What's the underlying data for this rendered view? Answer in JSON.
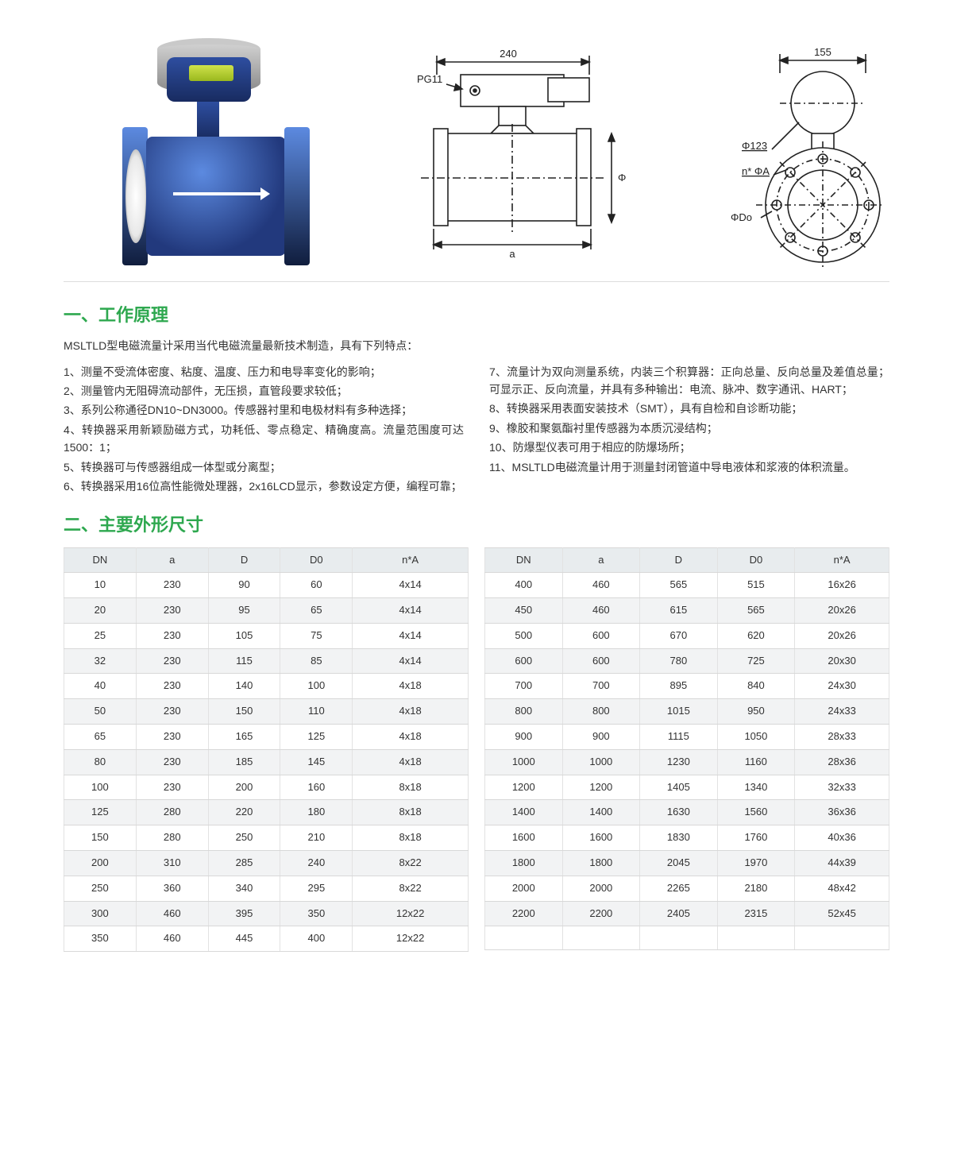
{
  "section1": {
    "title": "一、工作原理",
    "intro": "MSLTLD型电磁流量计采用当代电磁流量最新技术制造，具有下列特点：",
    "left": [
      "1、测量不受流体密度、粘度、温度、压力和电导率变化的影响；",
      "2、测量管内无阻碍流动部件，无压损，直管段要求较低；",
      "3、系列公称通径DN10~DN3000。传感器衬里和电极材料有多种选择；",
      "4、转换器采用新颖励磁方式，功耗低、零点稳定、精确度高。流量范围度可达1500：1；",
      "5、转换器可与传感器组成一体型或分离型；",
      "6、转换器采用16位高性能微处理器，2x16LCD显示，参数设定方便，编程可靠；"
    ],
    "right": [
      "7、流量计为双向测量系统，内装三个积算器：正向总量、反向总量及差值总量；可显示正、反向流量，并具有多种输出：电流、脉冲、数字通讯、HART；",
      "8、转换器采用表面安装技术（SMT），具有自检和自诊断功能；",
      "9、橡胶和聚氨酯衬里传感器为本质沉浸结构；",
      "10、防爆型仪表可用于相应的防爆场所；",
      "11、MSLTLD电磁流量计用于测量封闭管道中导电液体和浆液的体积流量。"
    ]
  },
  "section2": {
    "title": "二、主要外形尺寸"
  },
  "tableHeaders": [
    "DN",
    "a",
    "D",
    "D0",
    "n*A"
  ],
  "tableLeft": [
    [
      "10",
      "230",
      "90",
      "60",
      "4x14"
    ],
    [
      "20",
      "230",
      "95",
      "65",
      "4x14"
    ],
    [
      "25",
      "230",
      "105",
      "75",
      "4x14"
    ],
    [
      "32",
      "230",
      "115",
      "85",
      "4x14"
    ],
    [
      "40",
      "230",
      "140",
      "100",
      "4x18"
    ],
    [
      "50",
      "230",
      "150",
      "110",
      "4x18"
    ],
    [
      "65",
      "230",
      "165",
      "125",
      "4x18"
    ],
    [
      "80",
      "230",
      "185",
      "145",
      "4x18"
    ],
    [
      "100",
      "230",
      "200",
      "160",
      "8x18"
    ],
    [
      "125",
      "280",
      "220",
      "180",
      "8x18"
    ],
    [
      "150",
      "280",
      "250",
      "210",
      "8x18"
    ],
    [
      "200",
      "310",
      "285",
      "240",
      "8x22"
    ],
    [
      "250",
      "360",
      "340",
      "295",
      "8x22"
    ],
    [
      "300",
      "460",
      "395",
      "350",
      "12x22"
    ],
    [
      "350",
      "460",
      "445",
      "400",
      "12x22"
    ]
  ],
  "tableRight": [
    [
      "400",
      "460",
      "565",
      "515",
      "16x26"
    ],
    [
      "450",
      "460",
      "615",
      "565",
      "20x26"
    ],
    [
      "500",
      "600",
      "670",
      "620",
      "20x26"
    ],
    [
      "600",
      "600",
      "780",
      "725",
      "20x30"
    ],
    [
      "700",
      "700",
      "895",
      "840",
      "24x30"
    ],
    [
      "800",
      "800",
      "1015",
      "950",
      "24x33"
    ],
    [
      "900",
      "900",
      "1115",
      "1050",
      "28x33"
    ],
    [
      "1000",
      "1000",
      "1230",
      "1160",
      "28x36"
    ],
    [
      "1200",
      "1200",
      "1405",
      "1340",
      "32x33"
    ],
    [
      "1400",
      "1400",
      "1630",
      "1560",
      "36x36"
    ],
    [
      "1600",
      "1600",
      "1830",
      "1760",
      "40x36"
    ],
    [
      "1800",
      "1800",
      "2045",
      "1970",
      "44x39"
    ],
    [
      "2000",
      "2000",
      "2265",
      "2180",
      "48x42"
    ],
    [
      "2200",
      "2200",
      "2405",
      "2315",
      "52x45"
    ],
    [
      "",
      "",
      "",
      "",
      ""
    ]
  ],
  "diagram": {
    "labels": {
      "top240": "240",
      "pg11": "PG11",
      "phiD": "Φ D",
      "a": "a",
      "w155": "155",
      "phi123": "Φ123",
      "nPhiA": "n* ΦA",
      "phiDo": "ΦDo"
    },
    "colors": {
      "stroke": "#222",
      "fill": "#fff"
    }
  }
}
